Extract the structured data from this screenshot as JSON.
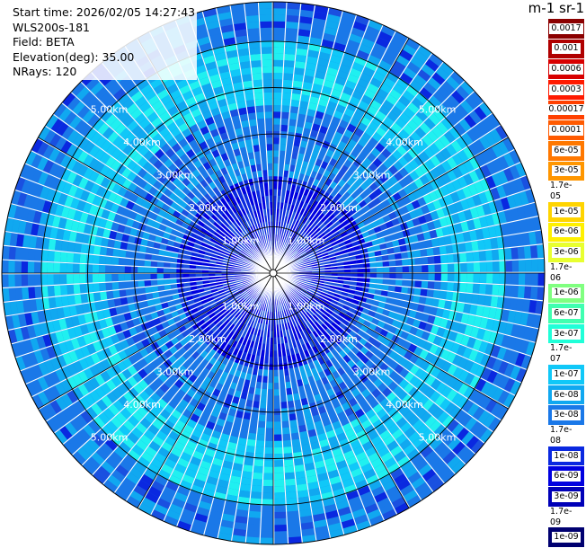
{
  "info": {
    "start_time": "Start time: 2026/02/05 14:27:43",
    "site": "WLS200s-181",
    "field": "Field: BETA",
    "elevation": "Elevation(deg): 35.00",
    "nrays": "NRays: 120"
  },
  "colorbar": {
    "unit_label": "m-1 sr-1",
    "labels": [
      "0.0017",
      "0.001",
      "0.0006",
      "0.0003",
      "0.00017",
      "0.0001",
      "6e-05",
      "3e-05",
      "1.7e-05",
      "1e-05",
      "6e-06",
      "3e-06",
      "1.7e-06",
      "1e-06",
      "6e-07",
      "3e-07",
      "1.7e-07",
      "1e-07",
      "6e-08",
      "3e-08",
      "1.7e-08",
      "1e-08",
      "6e-09",
      "3e-09",
      "1.7e-09",
      "1e-09"
    ],
    "colors": [
      "#8b0000",
      "#b00000",
      "#d80000",
      "#ff1a00",
      "#ff4000",
      "#ff5a00",
      "#ff7800",
      "#ff9600",
      "#ffb400",
      "#ffd400",
      "#fff000",
      "#e8ff30",
      "#b8ff60",
      "#80ff80",
      "#40ffb0",
      "#20ffd8",
      "#20f0f0",
      "#10c8f8",
      "#10a8f0",
      "#1a78e8",
      "#1a50e0",
      "#0a28e0",
      "#0000e0",
      "#0000b8",
      "#000098",
      "#000070"
    ]
  },
  "chart_data": {
    "type": "heatmap",
    "plot": "PPI polar scan",
    "rings": [
      {
        "range_km": 1,
        "label": "1.00km"
      },
      {
        "range_km": 2,
        "label": "2.00km"
      },
      {
        "range_km": 3,
        "label": "3.00km"
      },
      {
        "range_km": 4,
        "label": "4.00km"
      },
      {
        "range_km": 5,
        "label": "5.00km"
      }
    ],
    "max_range_km": 5.85,
    "n_rays": 120,
    "field": "BETA",
    "color_scale": "log",
    "value_range": [
      1e-09,
      0.0017
    ]
  }
}
